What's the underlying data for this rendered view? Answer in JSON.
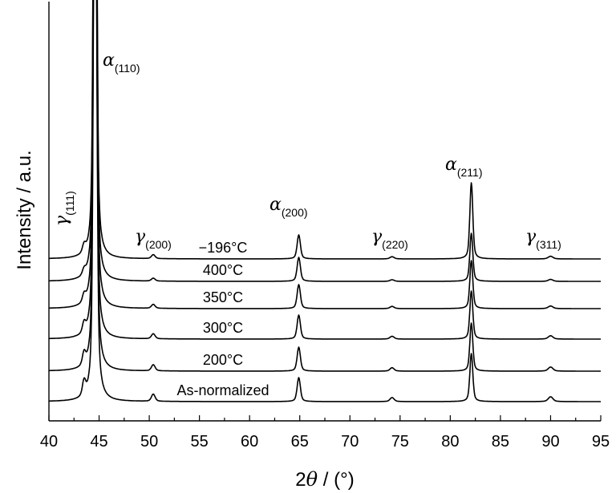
{
  "chart_data": {
    "type": "line",
    "xlabel_prefix": "2",
    "xlabel_theta": "θ",
    "xlabel_suffix": " / (°)",
    "ylabel": "Intensity / a.u.",
    "xlim": [
      40,
      95
    ],
    "xticks": [
      "40",
      "45",
      "50",
      "55",
      "60",
      "65",
      "70",
      "75",
      "80",
      "85",
      "90",
      "95"
    ],
    "yticks_shown": false,
    "series": [
      {
        "name": "As-normalized",
        "gamma_scale": 1.0
      },
      {
        "name": "200°C",
        "gamma_scale": 0.85
      },
      {
        "name": "300°C",
        "gamma_scale": 0.7
      },
      {
        "name": "350°C",
        "gamma_scale": 0.55
      },
      {
        "name": "400°C",
        "gamma_scale": 0.4
      },
      {
        "name": "−196°C",
        "gamma_scale": 0.55
      }
    ],
    "peaks": [
      {
        "phase": "γ",
        "hkl": "(111)",
        "two_theta": 43.5
      },
      {
        "phase": "α",
        "hkl": "(110)",
        "two_theta": 44.6
      },
      {
        "phase": "γ",
        "hkl": "(200)",
        "two_theta": 50.4
      },
      {
        "phase": "α",
        "hkl": "(200)",
        "two_theta": 64.9
      },
      {
        "phase": "γ",
        "hkl": "(220)",
        "two_theta": 74.2
      },
      {
        "phase": "α",
        "hkl": "(211)",
        "two_theta": 82.1
      },
      {
        "phase": "γ",
        "hkl": "(311)",
        "two_theta": 90.0
      }
    ]
  }
}
